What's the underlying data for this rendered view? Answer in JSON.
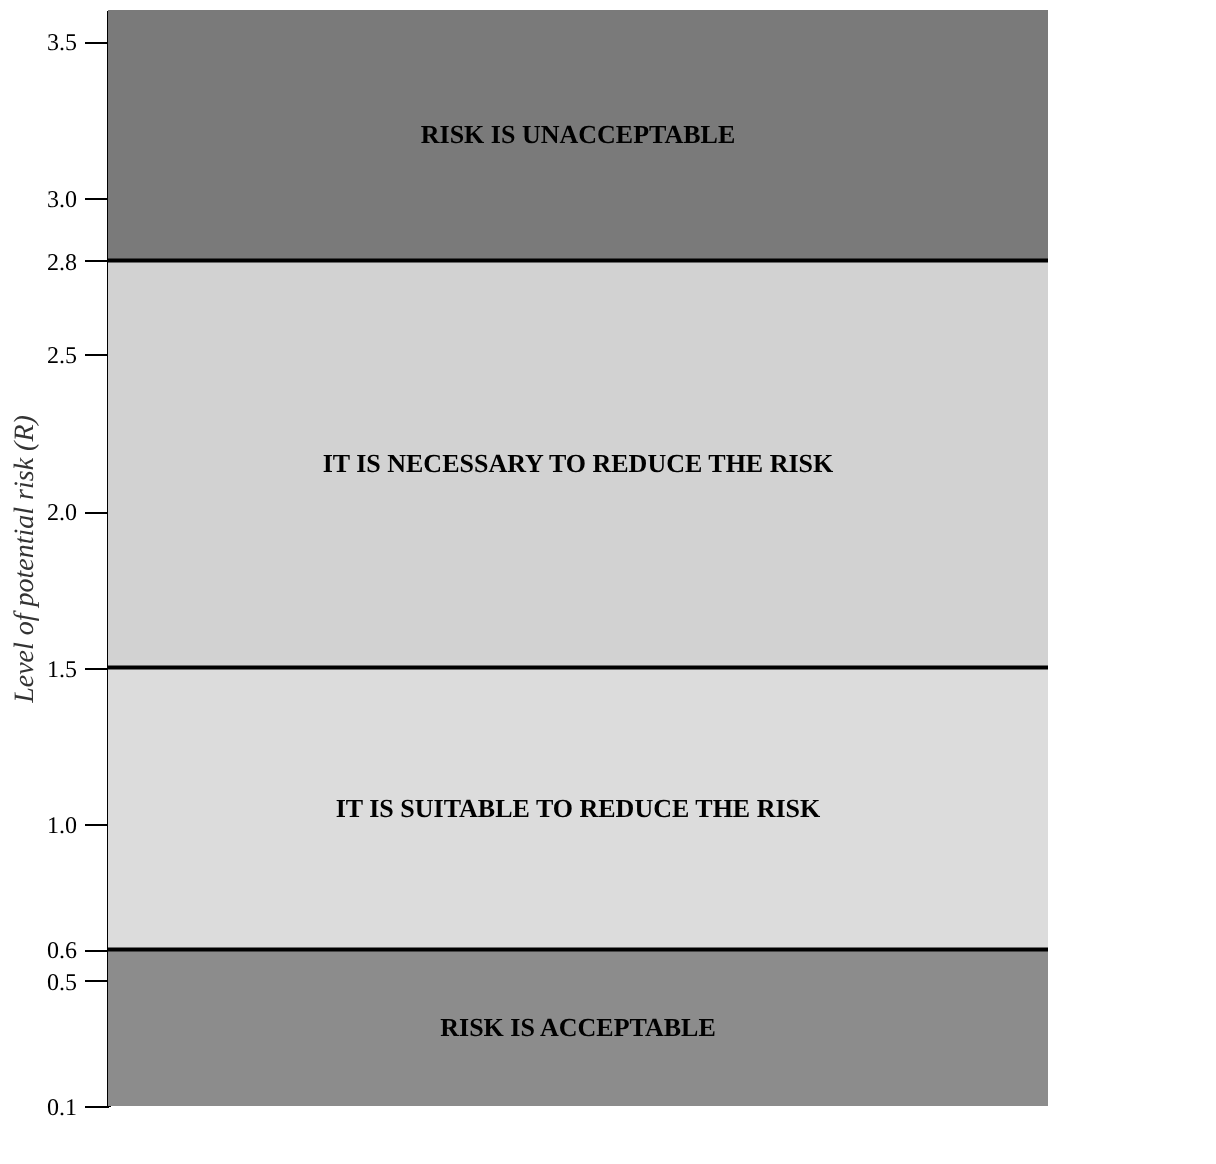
{
  "chart_data": {
    "type": "bar",
    "categories": [
      null
    ],
    "values": [
      null
    ],
    "ylabel": "Level of potential risk (R)",
    "ylim": [
      0.1,
      3.6
    ],
    "yticks": [
      0.1,
      0.5,
      0.6,
      {
        "value": 1,
        "label": "1.0"
      },
      1.5,
      {
        "value": 2,
        "label": "2.0"
      },
      2.5,
      2.8,
      {
        "value": 3,
        "label": "3.0"
      },
      3.5
    ],
    "bands": [
      {
        "axis": "y",
        "from": 0.1,
        "to": 0.6,
        "label": "RISK IS ACCEPTABLE",
        "color": "#8c8c8c"
      },
      {
        "axis": "y",
        "from": 0.6,
        "to": 1.5,
        "label": "IT IS SUITABLE TO REDUCE THE RISK",
        "color": "#dcdcdc"
      },
      {
        "axis": "y",
        "from": 1.5,
        "to": 2.8,
        "label": "IT IS NECESSARY TO REDUCE THE RISK",
        "color": "#d2d2d2"
      },
      {
        "axis": "y",
        "from": 2.8,
        "to": 3.6,
        "label": "RISK IS UNACCEPTABLE",
        "color": "#7a7a7a"
      }
    ],
    "ref_lines": [
      {
        "axis": "y",
        "value": 0.6,
        "color": "#000000"
      },
      {
        "axis": "y",
        "value": 1.5,
        "color": "#000000"
      },
      {
        "axis": "y",
        "value": 2.8,
        "color": "#000000"
      }
    ],
    "tick_labels": "y"
  }
}
